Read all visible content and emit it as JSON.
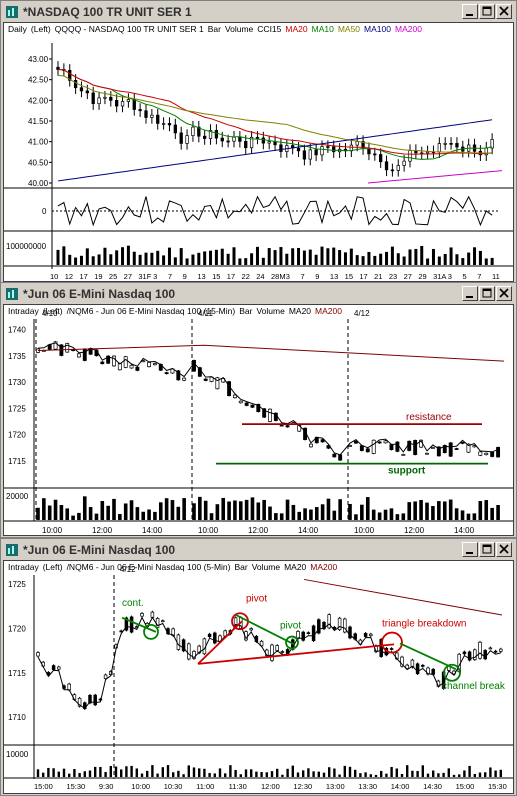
{
  "windows": [
    {
      "title": "*NASDAQ 100 TR UNIT SER 1",
      "period": "Daily",
      "axis_side": "(Left)",
      "instrument": "QQQQ - NASDAQ 100 TR UNIT SER 1",
      "chart_kind": "Bar",
      "volume_label": "Volume",
      "indicators": [
        {
          "label": "CCI15",
          "color": "#000000"
        },
        {
          "label": "MA20",
          "color": "#cc0000"
        },
        {
          "label": "MA10",
          "color": "#008000"
        },
        {
          "label": "MA50",
          "color": "#808000"
        },
        {
          "label": "MA100",
          "color": "#000080"
        },
        {
          "label": "MA200",
          "color": "#cc00cc"
        }
      ],
      "price_ticks": [
        "43.00",
        "42.50",
        "42.00",
        "41.50",
        "41.00",
        "40.50",
        "40.00"
      ],
      "cci_tick": "0",
      "volume_tick": "100000000",
      "date_ticks": [
        "10",
        "12",
        "17",
        "19",
        "25",
        "27",
        "31F",
        "3",
        "7",
        "9",
        "13",
        "15",
        "17",
        "22",
        "24",
        "28M",
        "3",
        "7",
        "9",
        "13",
        "15",
        "17",
        "21",
        "23",
        "27",
        "29",
        "31A",
        "3",
        "5",
        "7",
        "11"
      ]
    },
    {
      "title": "*Jun 06  E-Mini Nasdaq 100",
      "period": "Intraday",
      "axis_side": "(Left)",
      "instrument": "/NQM6 - Jun 06  E-Mini Nasdaq 100 (15-Min)",
      "chart_kind": "Bar",
      "volume_label": "Volume",
      "indicators": [
        {
          "label": "MA20",
          "color": "#000000"
        },
        {
          "label": "MA200",
          "color": "#800000"
        }
      ],
      "session_labels": [
        "4/10",
        "4/11",
        "4/12"
      ],
      "price_ticks": [
        "1740",
        "1735",
        "1730",
        "1725",
        "1720",
        "1715"
      ],
      "volume_tick": "20000",
      "time_ticks": [
        "10:00",
        "12:00",
        "14:00",
        "10:00",
        "12:00",
        "14:00",
        "10:00",
        "12:00",
        "14:00"
      ],
      "annotations": [
        {
          "text": "resistance",
          "color": "#990000"
        },
        {
          "text": "support",
          "color": "#006600"
        }
      ]
    },
    {
      "title": "*Jun 06  E-Mini Nasdaq 100",
      "period": "Intraday",
      "axis_side": "(Left)",
      "instrument": "/NQM6 - Jun 06  E-Mini Nasdaq 100 (5-Min)",
      "chart_kind": "Bar",
      "volume_label": "Volume",
      "indicators": [
        {
          "label": "MA20",
          "color": "#000000"
        },
        {
          "label": "MA200",
          "color": "#800000"
        }
      ],
      "session_labels": [
        "4/12"
      ],
      "price_ticks": [
        "1725",
        "1720",
        "1715",
        "1710"
      ],
      "volume_tick": "10000",
      "time_ticks": [
        "15:00",
        "15:30",
        "9:30",
        "10:00",
        "10:30",
        "11:00",
        "11:30",
        "12:00",
        "12:30",
        "13:00",
        "13:30",
        "14:00",
        "14:30",
        "15:00",
        "15:30"
      ],
      "annotations": [
        {
          "text": "cont.",
          "color": "#008000"
        },
        {
          "text": "pivot",
          "color": "#cc0000"
        },
        {
          "text": "pivot",
          "color": "#008000"
        },
        {
          "text": "triangle breakdown",
          "color": "#cc0000"
        },
        {
          "text": "channel break",
          "color": "#008000"
        }
      ]
    }
  ],
  "window_controls": [
    "minimize-button",
    "maximize-button",
    "close-button"
  ]
}
